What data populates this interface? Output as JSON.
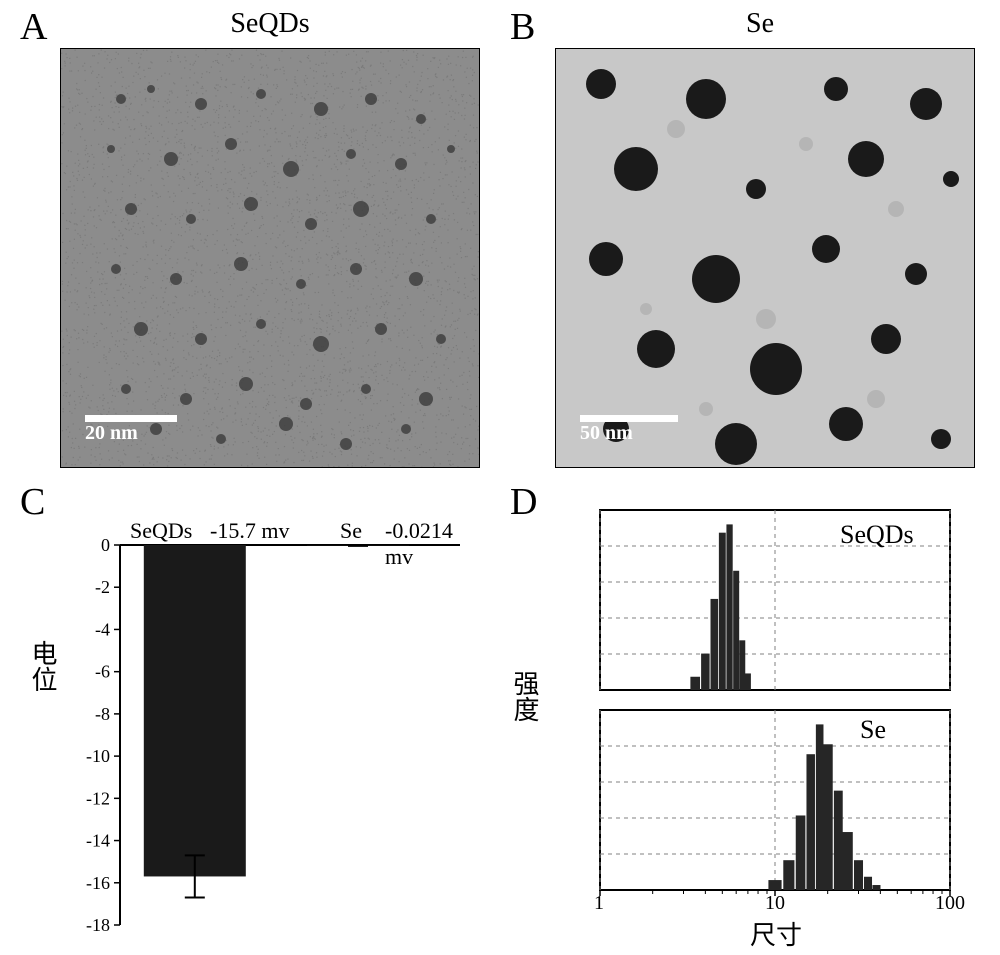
{
  "panelA": {
    "letter": "A",
    "title": "SeQDs",
    "scale_text": "20 nm",
    "bg_color": "#8c8c8c",
    "noise_color": "#707070",
    "dot_color": "#404040",
    "dots": [
      [
        60,
        50,
        5
      ],
      [
        90,
        40,
        4
      ],
      [
        140,
        55,
        6
      ],
      [
        200,
        45,
        5
      ],
      [
        260,
        60,
        7
      ],
      [
        310,
        50,
        6
      ],
      [
        360,
        70,
        5
      ],
      [
        50,
        100,
        4
      ],
      [
        110,
        110,
        7
      ],
      [
        170,
        95,
        6
      ],
      [
        230,
        120,
        8
      ],
      [
        290,
        105,
        5
      ],
      [
        340,
        115,
        6
      ],
      [
        390,
        100,
        4
      ],
      [
        70,
        160,
        6
      ],
      [
        130,
        170,
        5
      ],
      [
        190,
        155,
        7
      ],
      [
        250,
        175,
        6
      ],
      [
        300,
        160,
        8
      ],
      [
        370,
        170,
        5
      ],
      [
        55,
        220,
        5
      ],
      [
        115,
        230,
        6
      ],
      [
        180,
        215,
        7
      ],
      [
        240,
        235,
        5
      ],
      [
        295,
        220,
        6
      ],
      [
        355,
        230,
        7
      ],
      [
        80,
        280,
        7
      ],
      [
        140,
        290,
        6
      ],
      [
        200,
        275,
        5
      ],
      [
        260,
        295,
        8
      ],
      [
        320,
        280,
        6
      ],
      [
        380,
        290,
        5
      ],
      [
        65,
        340,
        5
      ],
      [
        125,
        350,
        6
      ],
      [
        185,
        335,
        7
      ],
      [
        245,
        355,
        6
      ],
      [
        305,
        340,
        5
      ],
      [
        365,
        350,
        7
      ],
      [
        95,
        380,
        6
      ],
      [
        160,
        390,
        5
      ],
      [
        225,
        375,
        7
      ],
      [
        285,
        395,
        6
      ],
      [
        345,
        380,
        5
      ]
    ]
  },
  "panelB": {
    "letter": "B",
    "title": "Se",
    "scale_text": "50 nm",
    "bg_color": "#c8c8c8",
    "dot_color": "#1a1a1a",
    "faint_color": "#b5b5b5",
    "dots": [
      [
        45,
        35,
        15
      ],
      [
        150,
        50,
        20
      ],
      [
        280,
        40,
        12
      ],
      [
        370,
        55,
        16
      ],
      [
        80,
        120,
        22
      ],
      [
        200,
        140,
        10
      ],
      [
        310,
        110,
        18
      ],
      [
        395,
        130,
        8
      ],
      [
        50,
        210,
        17
      ],
      [
        160,
        230,
        24
      ],
      [
        270,
        200,
        14
      ],
      [
        360,
        225,
        11
      ],
      [
        100,
        300,
        19
      ],
      [
        220,
        320,
        26
      ],
      [
        330,
        290,
        15
      ],
      [
        60,
        380,
        13
      ],
      [
        180,
        395,
        21
      ],
      [
        290,
        375,
        17
      ],
      [
        385,
        390,
        10
      ]
    ],
    "faint_dots": [
      [
        120,
        80,
        9
      ],
      [
        250,
        95,
        7
      ],
      [
        340,
        160,
        8
      ],
      [
        90,
        260,
        6
      ],
      [
        210,
        270,
        10
      ],
      [
        150,
        360,
        7
      ],
      [
        320,
        350,
        9
      ]
    ]
  },
  "panelC": {
    "letter": "C",
    "ylabel": "电位",
    "labels": {
      "SeQDs": "SeQDs",
      "SeQDs_val": "-15.7 mv",
      "Se": "Se",
      "Se_val": "-0.0214 mv"
    },
    "bars": [
      {
        "x": 0.22,
        "value": -15.7,
        "err": 1.0,
        "color": "#1a1a1a"
      },
      {
        "x": 0.7,
        "value": -0.0214,
        "err": 0.02,
        "color": "#1a1a1a"
      }
    ],
    "ylim": [
      -18,
      0
    ],
    "yticks": [
      0,
      -2,
      -4,
      -6,
      -8,
      -10,
      -12,
      -14,
      -16,
      -18
    ],
    "bar_width": 0.3,
    "axis_color": "#000000",
    "tick_fontsize": 18
  },
  "panelD": {
    "letter": "D",
    "ylabel": "强度",
    "xlabel": "尺寸",
    "xscale": "log",
    "xlim": [
      1,
      100
    ],
    "xticks": [
      1,
      10,
      100
    ],
    "grid_color": "#808080",
    "bar_color": "#262626",
    "subplots": [
      {
        "label": "SeQDs",
        "bars": [
          {
            "x": 3.5,
            "h": 0.08
          },
          {
            "x": 4.0,
            "h": 0.22
          },
          {
            "x": 4.5,
            "h": 0.55
          },
          {
            "x": 5.0,
            "h": 0.95
          },
          {
            "x": 5.5,
            "h": 1.0
          },
          {
            "x": 6.0,
            "h": 0.72
          },
          {
            "x": 6.5,
            "h": 0.3
          },
          {
            "x": 7.0,
            "h": 0.1
          }
        ]
      },
      {
        "label": "Se",
        "bars": [
          {
            "x": 10,
            "h": 0.06
          },
          {
            "x": 12,
            "h": 0.18
          },
          {
            "x": 14,
            "h": 0.45
          },
          {
            "x": 16,
            "h": 0.82
          },
          {
            "x": 18,
            "h": 1.0
          },
          {
            "x": 20,
            "h": 0.88
          },
          {
            "x": 23,
            "h": 0.6
          },
          {
            "x": 26,
            "h": 0.35
          },
          {
            "x": 30,
            "h": 0.18
          },
          {
            "x": 34,
            "h": 0.08
          },
          {
            "x": 38,
            "h": 0.03
          }
        ]
      }
    ]
  }
}
